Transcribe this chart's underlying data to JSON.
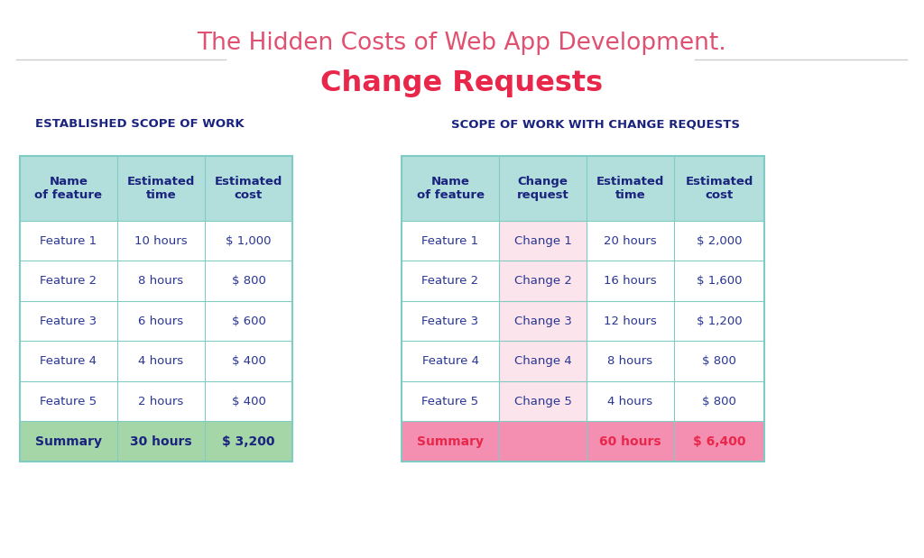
{
  "title_line1": "The Hidden Costs of Web App Development.",
  "title_line2": "Change Requests",
  "title_line1_color": "#e05070",
  "title_line2_color": "#e8274b",
  "subtitle_left": "ESTABLISHED SCOPE OF WORK",
  "subtitle_right": "SCOPE OF WORK WITH CHANGE REQUESTS",
  "subtitle_color": "#1a237e",
  "bg_color": "#ffffff",
  "table1_headers": [
    "Name\nof feature",
    "Estimated\ntime",
    "Estimated\ncost"
  ],
  "table1_rows": [
    [
      "Feature 1",
      "10 hours",
      "$ 1,000"
    ],
    [
      "Feature 2",
      "8 hours",
      "$ 800"
    ],
    [
      "Feature 3",
      "6 hours",
      "$ 600"
    ],
    [
      "Feature 4",
      "4 hours",
      "$ 400"
    ],
    [
      "Feature 5",
      "2 hours",
      "$ 400"
    ]
  ],
  "table1_summary": [
    "Summary",
    "30 hours",
    "$ 3,200"
  ],
  "table2_headers": [
    "Name\nof feature",
    "Change\nrequest",
    "Estimated\ntime",
    "Estimated\ncost"
  ],
  "table2_rows": [
    [
      "Feature 1",
      "Change 1",
      "20 hours",
      "$ 2,000"
    ],
    [
      "Feature 2",
      "Change 2",
      "16 hours",
      "$ 1,600"
    ],
    [
      "Feature 3",
      "Change 3",
      "12 hours",
      "$ 1,200"
    ],
    [
      "Feature 4",
      "Change 4",
      "8 hours",
      "$ 800"
    ],
    [
      "Feature 5",
      "Change 5",
      "4 hours",
      "$ 800"
    ]
  ],
  "table2_summary": [
    "Summary",
    "",
    "60 hours",
    "$ 6,400"
  ],
  "header_bg": "#b2dfdb",
  "header_text_color": "#1a237e",
  "row_bg": "#ffffff",
  "row_text_color": "#283593",
  "border_color": "#80cbc4",
  "summary_bg_left": "#a5d6a7",
  "summary_text_left": "#1a237e",
  "summary_bg_right": "#f48fb1",
  "summary_text_right": "#e8274b",
  "change_col_bg": "#fce4ec",
  "change_col_text": "#283593",
  "divider_color": "#cccccc",
  "fig_width": 10.24,
  "fig_height": 6.19,
  "dpi": 100
}
